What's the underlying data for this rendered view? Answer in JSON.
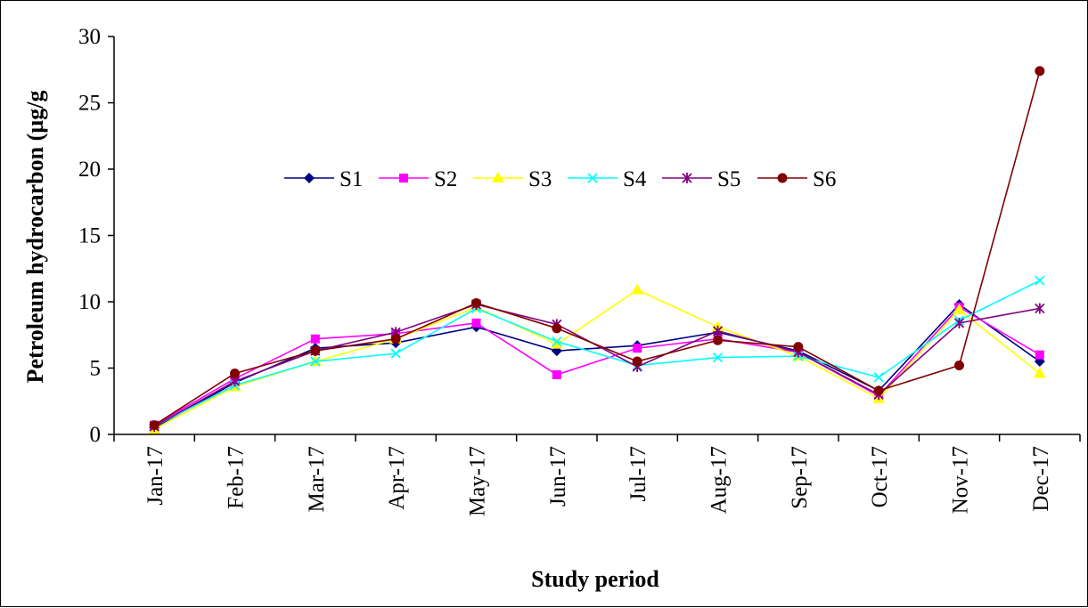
{
  "chart_data": {
    "type": "line",
    "xlabel": "Study period",
    "ylabel": "Petroleum hydrocarbon (µg/g",
    "ylim": [
      0,
      30
    ],
    "yticks": [
      0,
      5,
      10,
      15,
      20,
      25,
      30
    ],
    "grid": false,
    "legend_position": "top-center",
    "categories": [
      "Jan-17",
      "Feb-17",
      "Mar-17",
      "Apr-17",
      "May-17",
      "Jun-17",
      "Jul-17",
      "Aug-17",
      "Sep-17",
      "Oct-17",
      "Nov-17",
      "Dec-17"
    ],
    "series": [
      {
        "name": "S1",
        "color": "#000080",
        "marker": "diamond",
        "values": [
          0.5,
          3.9,
          6.5,
          6.9,
          8.1,
          6.3,
          6.7,
          7.7,
          6.3,
          3.3,
          9.8,
          5.5
        ]
      },
      {
        "name": "S2",
        "color": "#ff00ff",
        "marker": "square",
        "values": [
          0.7,
          4.2,
          7.2,
          7.6,
          8.4,
          4.5,
          6.5,
          7.2,
          6.2,
          2.9,
          9.6,
          6.0
        ]
      },
      {
        "name": "S3",
        "color": "#ffff00",
        "marker": "triangle",
        "values": [
          0.4,
          3.6,
          5.5,
          7.2,
          9.6,
          6.8,
          10.9,
          8.1,
          5.9,
          2.7,
          9.4,
          4.6
        ]
      },
      {
        "name": "S4",
        "color": "#00ffff",
        "marker": "x",
        "values": [
          0.6,
          3.7,
          5.5,
          6.1,
          9.5,
          7.0,
          5.2,
          5.8,
          5.9,
          4.3,
          8.6,
          11.6
        ]
      },
      {
        "name": "S5",
        "color": "#800080",
        "marker": "star",
        "values": [
          0.6,
          4.0,
          6.3,
          7.7,
          9.8,
          8.3,
          5.1,
          7.8,
          6.2,
          3.0,
          8.4,
          9.5
        ]
      },
      {
        "name": "S6",
        "color": "#800000",
        "marker": "circle",
        "values": [
          0.7,
          4.6,
          6.3,
          7.2,
          9.9,
          8.0,
          5.5,
          7.1,
          6.6,
          3.3,
          5.2,
          27.4
        ]
      }
    ]
  }
}
